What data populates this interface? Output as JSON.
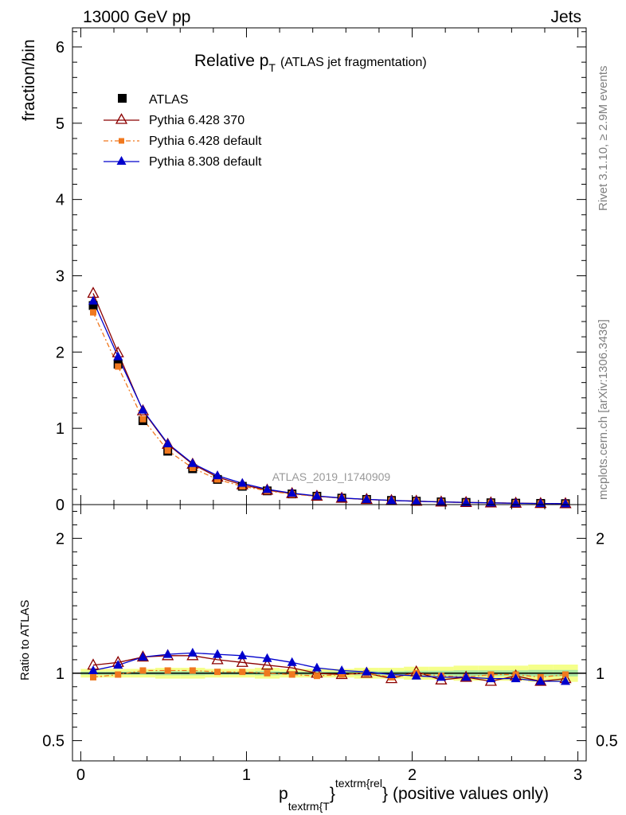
{
  "header": {
    "left": "13000 GeV pp",
    "right": "Jets"
  },
  "side_labels": {
    "rivet": "Rivet 3.1.10, ≥ 2.9M events",
    "mcplots": "mcplots.cern.ch [arXiv:1306.3436]"
  },
  "chart_data": [
    {
      "type": "scatter",
      "title_main": "Relative p",
      "title_sub": "T",
      "title_note": "(ATLAS jet fragmentation)",
      "ylabel": "fraction/bin",
      "watermark": "ATLAS_2019_I1740909",
      "xlim": [
        -0.05,
        3.05
      ],
      "ylim": [
        0,
        6.25
      ],
      "yticks": [
        0,
        1,
        2,
        3,
        4,
        5,
        6
      ],
      "legend_position": "top-left",
      "x": [
        0.075,
        0.225,
        0.375,
        0.525,
        0.675,
        0.825,
        0.975,
        1.125,
        1.275,
        1.425,
        1.575,
        1.725,
        1.875,
        2.025,
        2.175,
        2.325,
        2.475,
        2.625,
        2.775,
        2.925
      ],
      "series": [
        {
          "name": "ATLAS",
          "color": "#000000",
          "marker": "square",
          "values": [
            2.61,
            1.84,
            1.1,
            0.7,
            0.47,
            0.33,
            0.24,
            0.18,
            0.14,
            0.11,
            0.085,
            0.068,
            0.055,
            0.045,
            0.036,
            0.029,
            0.024,
            0.019,
            0.016,
            0.013
          ]
        },
        {
          "name": "Pythia 6.428 370",
          "color": "#8b0000",
          "marker": "triangle-open",
          "dash": "",
          "values": [
            2.77,
            1.99,
            1.23,
            0.79,
            0.53,
            0.36,
            0.26,
            0.19,
            0.145,
            0.11,
            0.084,
            0.068,
            0.053,
            0.045,
            0.034,
            0.028,
            0.023,
            0.019,
            0.015,
            0.0125
          ]
        },
        {
          "name": "Pythia 6.428 default",
          "color": "#f0781e",
          "marker": "square-small",
          "dash": "6,3,2,3",
          "values": [
            2.52,
            1.81,
            1.12,
            0.71,
            0.48,
            0.33,
            0.24,
            0.18,
            0.137,
            0.108,
            0.084,
            0.068,
            0.053,
            0.045,
            0.035,
            0.028,
            0.024,
            0.019,
            0.015,
            0.013
          ]
        },
        {
          "name": "Pythia 8.308 default",
          "color": "#0000cc",
          "marker": "triangle",
          "dash": "",
          "values": [
            2.67,
            1.94,
            1.24,
            0.8,
            0.54,
            0.38,
            0.28,
            0.2,
            0.15,
            0.114,
            0.087,
            0.069,
            0.055,
            0.044,
            0.035,
            0.028,
            0.023,
            0.018,
            0.015,
            0.0122
          ]
        }
      ]
    },
    {
      "type": "scatter",
      "ylabel": "Ratio to ATLAS",
      "xlabel_main": "p",
      "xlabel_sub": "textrm{T",
      "xlabel_sup": "textrm{rel",
      "xlabel_brace_mid": "}",
      "xlabel_brace_end": "}",
      "xlabel_tail": "(positive values only)",
      "xlim": [
        -0.05,
        3.05
      ],
      "ylim": [
        0.35,
        2.25
      ],
      "yticks": [
        0.5,
        1,
        2
      ],
      "ytick_labels": [
        "0.5",
        "1",
        "2"
      ],
      "xticks": [
        0,
        1,
        2,
        3
      ],
      "xtick_labels": [
        "0",
        "1",
        "2",
        "3"
      ],
      "band_halfwidth": [
        0.02,
        0.02,
        0.02,
        0.025,
        0.025,
        0.02,
        0.02,
        0.025,
        0.02,
        0.02,
        0.02,
        0.025,
        0.025,
        0.03,
        0.03,
        0.035,
        0.035,
        0.035,
        0.04,
        0.04
      ],
      "series": [
        {
          "name": "Pythia 6.428 370",
          "color": "#8b0000",
          "marker": "triangle-open",
          "dash": "",
          "values": [
            1.06,
            1.08,
            1.12,
            1.13,
            1.13,
            1.1,
            1.08,
            1.06,
            1.04,
            1.0,
            0.99,
            1.0,
            0.96,
            1.01,
            0.95,
            0.97,
            0.94,
            0.98,
            0.94,
            0.96
          ]
        },
        {
          "name": "Pythia 6.428 default",
          "color": "#f0781e",
          "marker": "square-small",
          "dash": "6,3,2,3",
          "values": [
            0.97,
            0.99,
            1.02,
            1.02,
            1.02,
            1.01,
            1.01,
            1.0,
            0.99,
            0.98,
            0.99,
            1.0,
            0.97,
            1.0,
            0.98,
            0.97,
            0.99,
            0.99,
            0.97,
            0.99
          ]
        },
        {
          "name": "Pythia 8.308 default",
          "color": "#0000cc",
          "marker": "triangle",
          "dash": "",
          "values": [
            1.02,
            1.06,
            1.12,
            1.14,
            1.15,
            1.14,
            1.13,
            1.11,
            1.08,
            1.04,
            1.02,
            1.01,
            0.99,
            0.98,
            0.97,
            0.97,
            0.96,
            0.96,
            0.94,
            0.94
          ]
        }
      ]
    }
  ]
}
